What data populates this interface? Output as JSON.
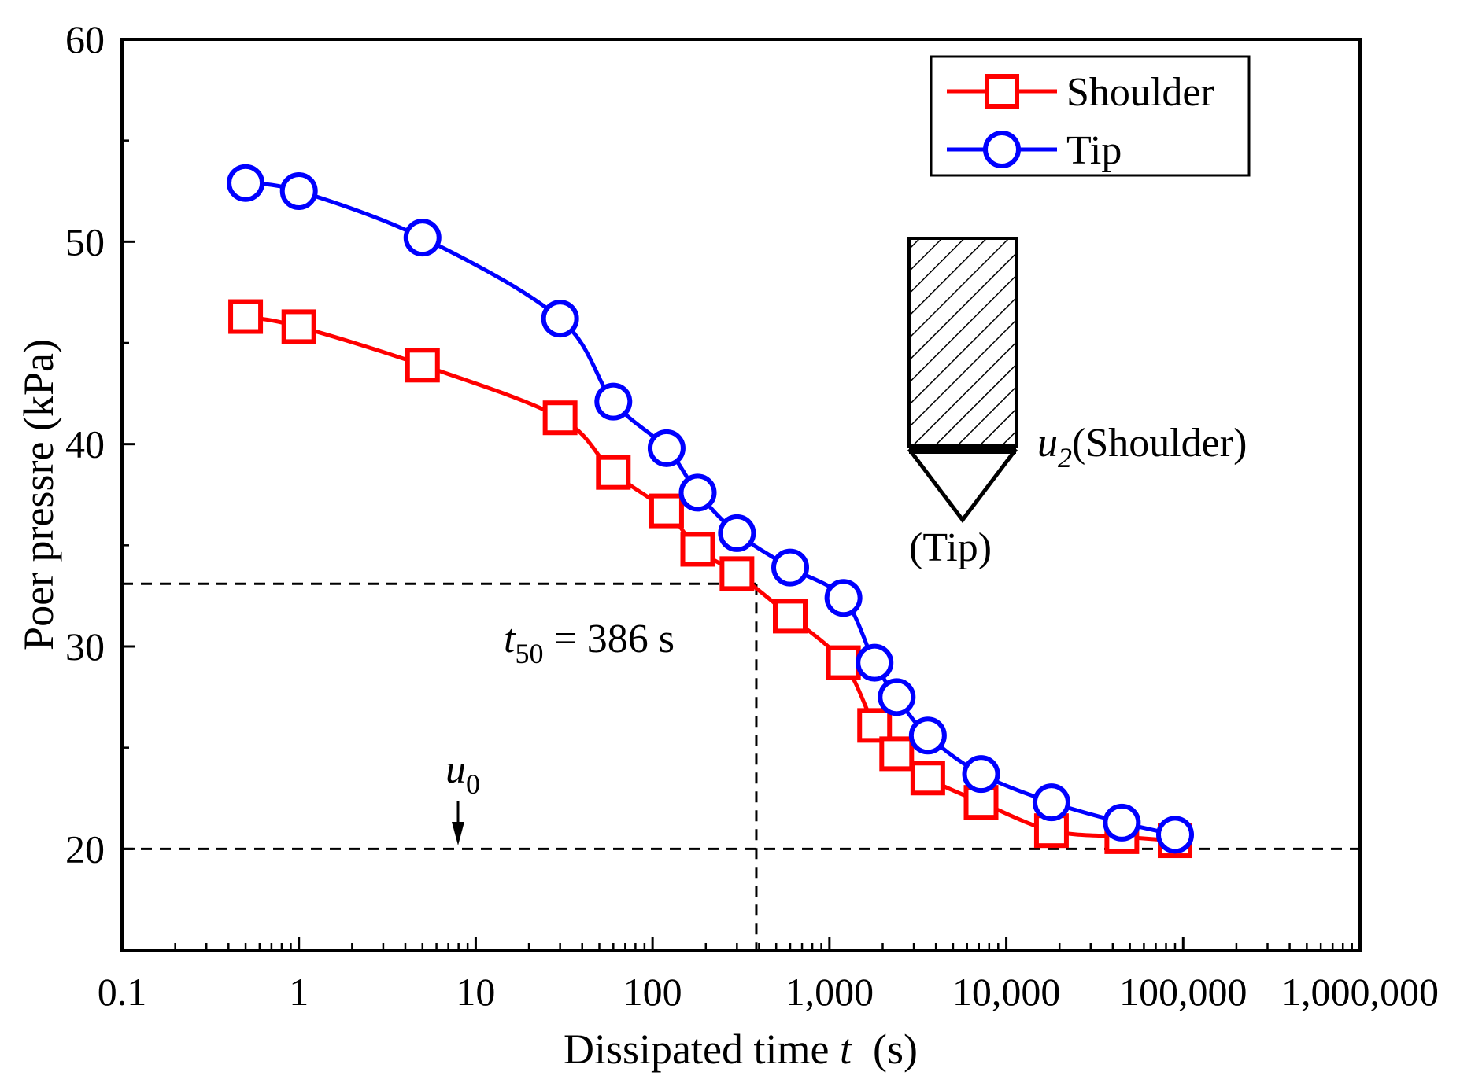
{
  "chart_data": {
    "type": "line",
    "xscale": "log",
    "xlim": [
      0.1,
      1000000
    ],
    "ylim": [
      15,
      60
    ],
    "xlabel_prefix": "Dissipated time ",
    "xlabel_var": "t",
    "xlabel_suffix": "  (s)",
    "ylabel": "Poer pressre (kPa)",
    "x_ticks": [
      0.1,
      1,
      10,
      100,
      1000,
      10000,
      100000,
      1000000
    ],
    "x_tick_labels": [
      "0.1",
      "1",
      "10",
      "100",
      "1,000",
      "10,000",
      "100,000",
      "1,000,000"
    ],
    "y_ticks": [
      20,
      30,
      40,
      50,
      60
    ],
    "y_tick_labels": [
      "20",
      "30",
      "40",
      "50",
      "60"
    ],
    "legend_position": "top-right",
    "series": [
      {
        "name": "Shoulder",
        "color": "#ff0000",
        "marker": "square",
        "x": [
          0.5,
          1,
          5,
          30,
          60,
          120,
          180,
          300,
          600,
          1200,
          1800,
          2400,
          3600,
          7200,
          18000,
          45000,
          90000
        ],
        "y": [
          46.3,
          45.8,
          43.9,
          41.3,
          38.6,
          36.7,
          34.8,
          33.6,
          31.5,
          29.2,
          26.1,
          24.7,
          23.5,
          22.3,
          20.9,
          20.6,
          20.4
        ]
      },
      {
        "name": "Tip",
        "color": "#0000ff",
        "marker": "circle",
        "x": [
          0.5,
          1,
          5,
          30,
          60,
          120,
          180,
          300,
          600,
          1200,
          1800,
          2400,
          3600,
          7200,
          18000,
          45000,
          90000
        ],
        "y": [
          52.9,
          52.5,
          50.2,
          46.2,
          42.1,
          39.8,
          37.6,
          35.6,
          33.9,
          32.4,
          29.2,
          27.5,
          25.6,
          23.7,
          22.3,
          21.3,
          20.7
        ]
      }
    ],
    "reference_lines": {
      "u0": 20,
      "half_pressure": 33.1,
      "t50": 386
    },
    "annotations": {
      "t50_var": "t",
      "t50_sub": "50",
      "t50_text": " = 386 s",
      "u0_var": "u",
      "u0_sub": "0",
      "u2_var": "u",
      "u2_sub": "2",
      "u2_text": "(Shoulder)",
      "tip_text": "(Tip)"
    }
  },
  "colors": {
    "axis": "#000000",
    "dashed": "#000000",
    "background": "#ffffff"
  }
}
